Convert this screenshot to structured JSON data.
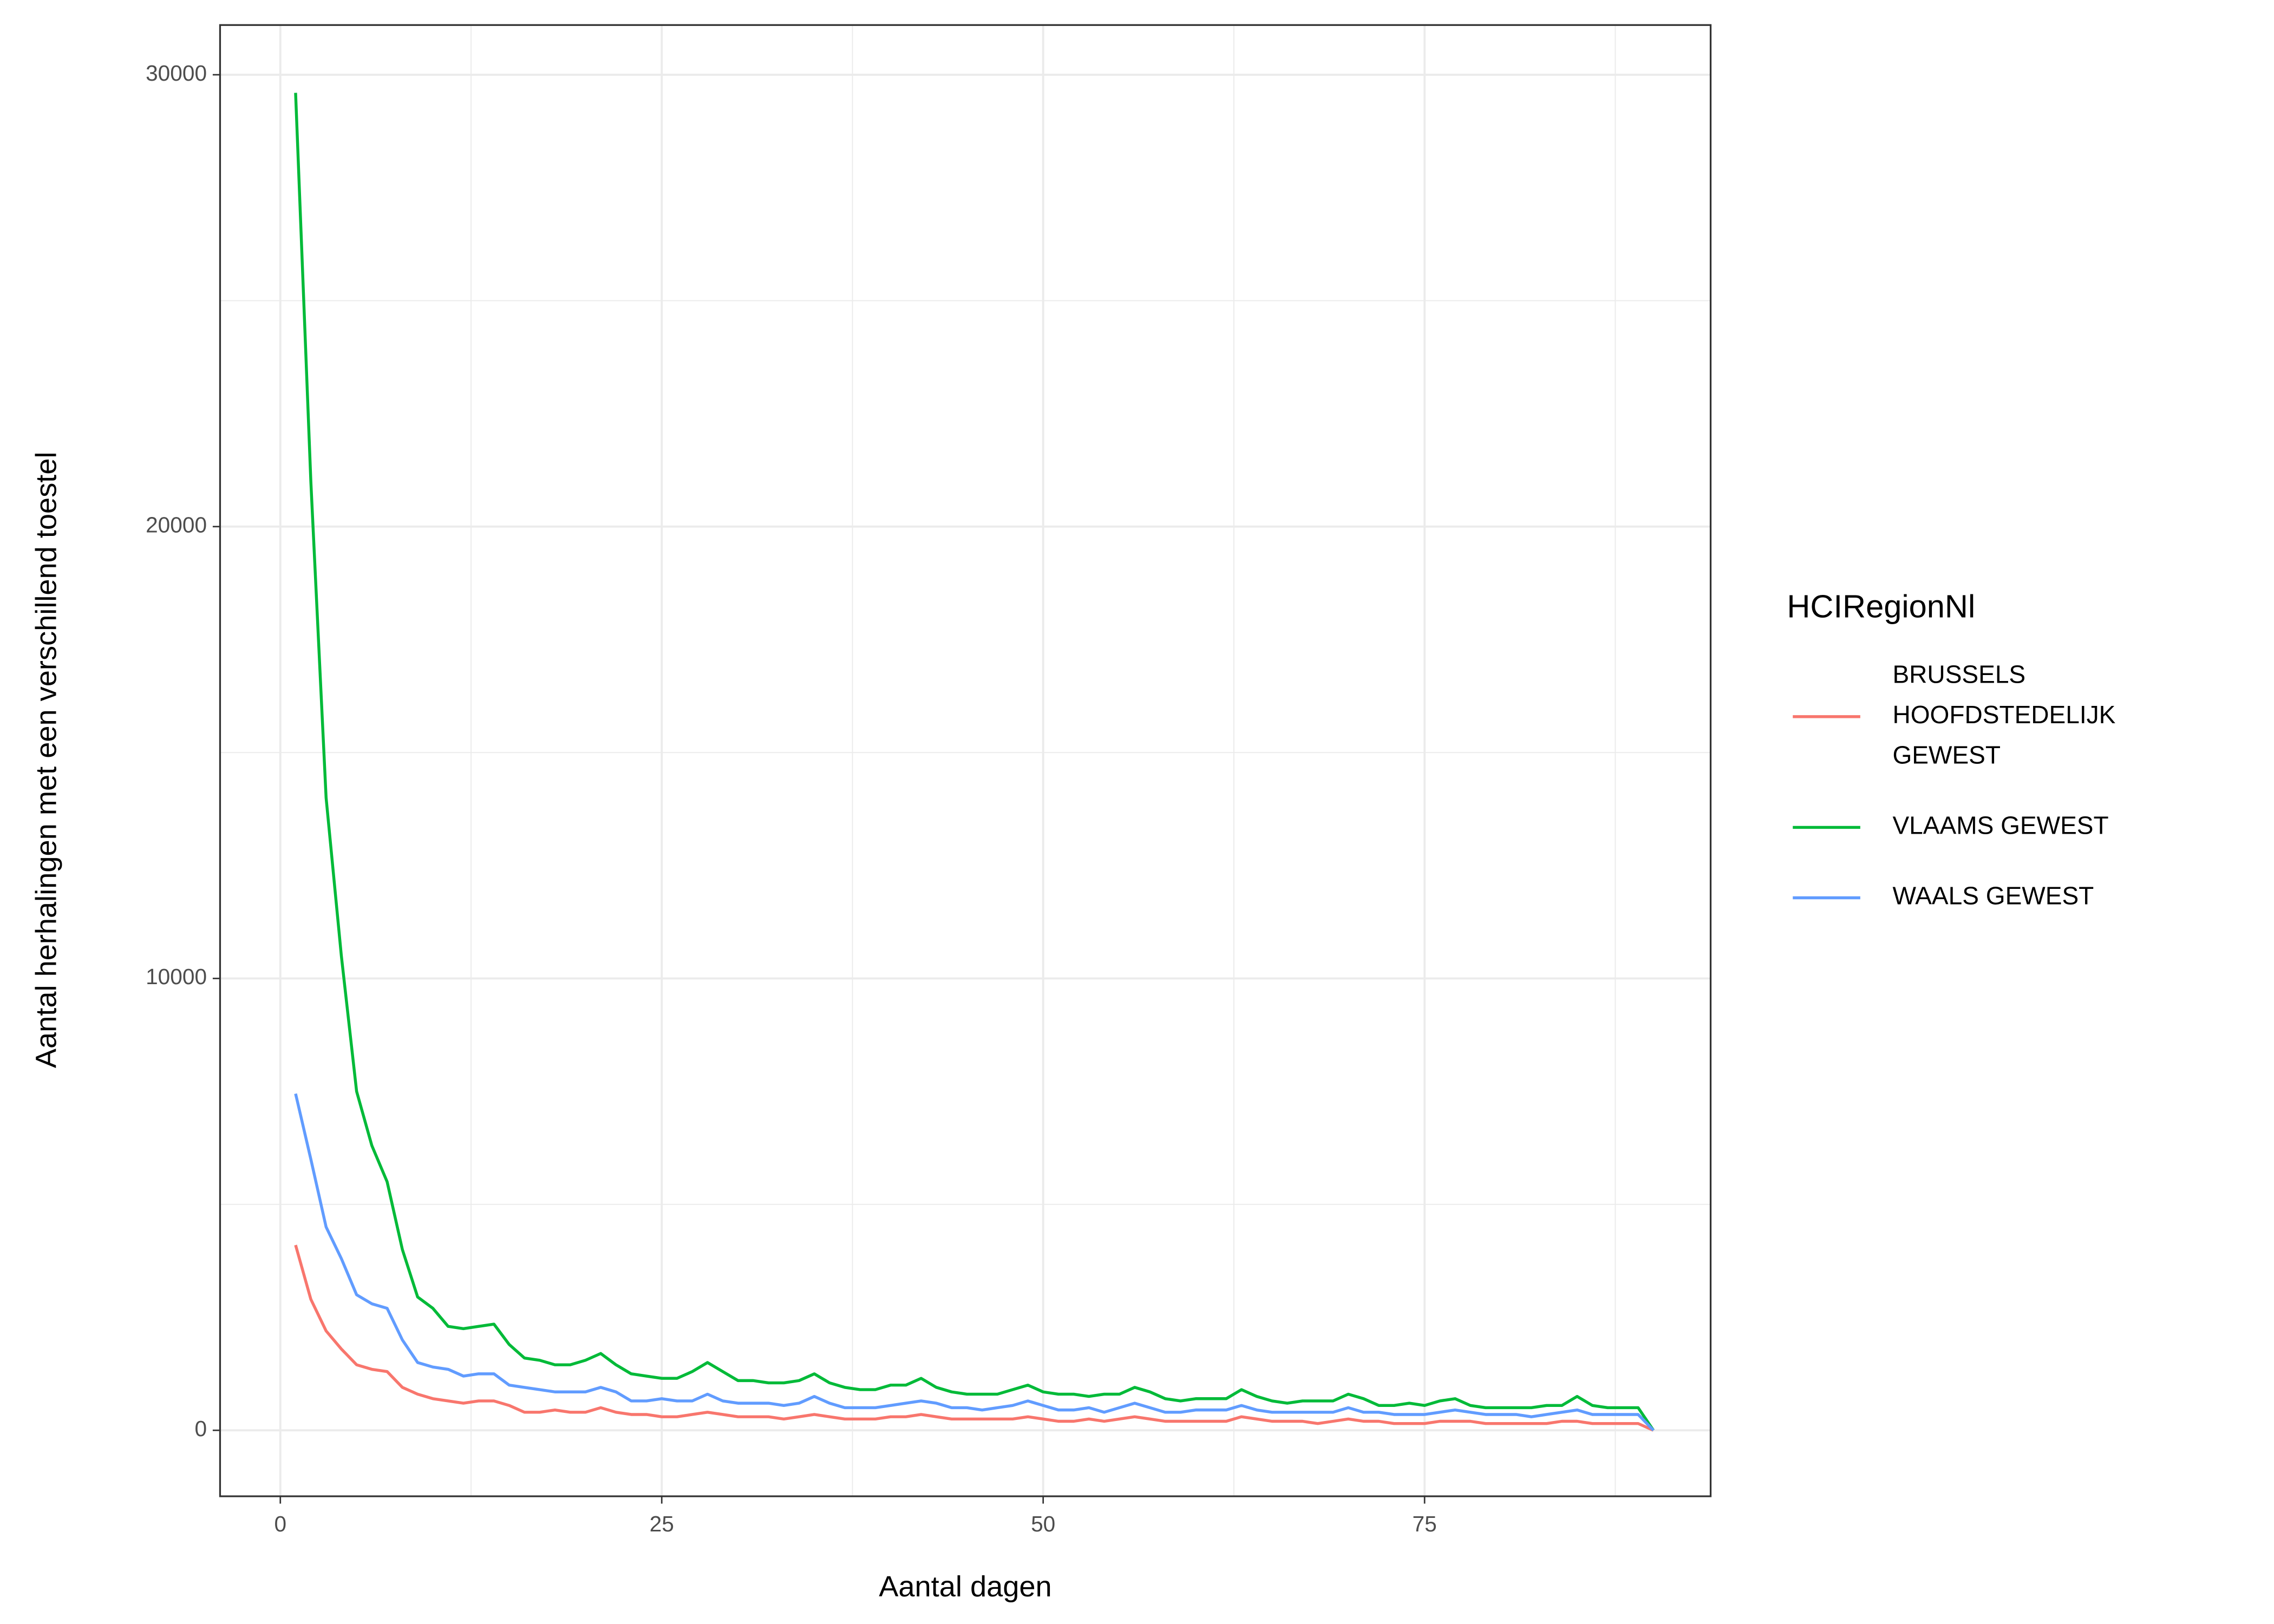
{
  "chart_data": {
    "type": "line",
    "x_label": "Aantal dagen",
    "y_label": "Aantal herhalingen met een verschillend toestel",
    "legend_title": "HCIRegionNl",
    "legend_position": "right",
    "grid": true,
    "xlim": [
      -3.95,
      93.75
    ],
    "ylim": [
      -1460,
      31100
    ],
    "xticks": [
      0,
      25,
      50,
      75
    ],
    "yticks": [
      0,
      10000,
      20000,
      30000
    ],
    "xminor": [
      12.5,
      37.5,
      62.5,
      87.5
    ],
    "yminor": [
      5000,
      15000,
      25000
    ],
    "x": [
      1,
      2,
      3,
      4,
      5,
      6,
      7,
      8,
      9,
      10,
      11,
      12,
      13,
      14,
      15,
      16,
      17,
      18,
      19,
      20,
      21,
      22,
      23,
      24,
      25,
      26,
      27,
      28,
      29,
      30,
      31,
      32,
      33,
      34,
      35,
      36,
      37,
      38,
      39,
      40,
      41,
      42,
      43,
      44,
      45,
      46,
      47,
      48,
      49,
      50,
      51,
      52,
      53,
      54,
      55,
      56,
      57,
      58,
      59,
      60,
      61,
      62,
      63,
      64,
      65,
      66,
      67,
      68,
      69,
      70,
      71,
      72,
      73,
      74,
      75,
      76,
      77,
      78,
      79,
      80,
      81,
      82,
      83,
      84,
      85,
      86,
      87,
      88,
      89,
      90
    ],
    "series": [
      {
        "name": "BRUSSELS HOOFDSTEDELIJK GEWEST",
        "color": "#F8766D",
        "values": [
          4100,
          2900,
          2200,
          1800,
          1450,
          1350,
          1300,
          950,
          800,
          700,
          650,
          600,
          650,
          650,
          550,
          400,
          400,
          450,
          400,
          400,
          500,
          400,
          350,
          350,
          300,
          300,
          350,
          400,
          350,
          300,
          300,
          300,
          250,
          300,
          350,
          300,
          250,
          250,
          250,
          300,
          300,
          350,
          300,
          250,
          250,
          250,
          250,
          250,
          300,
          250,
          200,
          200,
          250,
          200,
          250,
          300,
          250,
          200,
          200,
          200,
          200,
          200,
          300,
          250,
          200,
          200,
          200,
          150,
          200,
          250,
          200,
          200,
          150,
          150,
          150,
          200,
          200,
          200,
          150,
          150,
          150,
          150,
          150,
          200,
          200,
          150,
          150,
          150,
          150,
          0
        ]
      },
      {
        "name": "VLAAMS GEWEST",
        "color": "#00BA38",
        "values": [
          29600,
          21000,
          14000,
          10500,
          7500,
          6300,
          5500,
          4000,
          2950,
          2700,
          2300,
          2250,
          2300,
          2350,
          1900,
          1600,
          1550,
          1450,
          1450,
          1550,
          1700,
          1450,
          1250,
          1200,
          1150,
          1150,
          1300,
          1500,
          1300,
          1100,
          1100,
          1050,
          1050,
          1100,
          1250,
          1050,
          950,
          900,
          900,
          1000,
          1000,
          1150,
          950,
          850,
          800,
          800,
          800,
          900,
          1000,
          850,
          800,
          800,
          750,
          800,
          800,
          950,
          850,
          700,
          650,
          700,
          700,
          700,
          900,
          750,
          650,
          600,
          650,
          650,
          650,
          800,
          700,
          550,
          550,
          600,
          550,
          650,
          700,
          550,
          500,
          500,
          500,
          500,
          550,
          550,
          750,
          550,
          500,
          500,
          500,
          0
        ]
      },
      {
        "name": "WAALS GEWEST",
        "color": "#619CFF",
        "values": [
          7450,
          6000,
          4500,
          3800,
          3000,
          2800,
          2700,
          2000,
          1500,
          1400,
          1350,
          1200,
          1250,
          1250,
          1000,
          950,
          900,
          850,
          850,
          850,
          950,
          850,
          650,
          650,
          700,
          650,
          650,
          800,
          650,
          600,
          600,
          600,
          550,
          600,
          750,
          600,
          500,
          500,
          500,
          550,
          600,
          650,
          600,
          500,
          500,
          450,
          500,
          550,
          650,
          550,
          450,
          450,
          500,
          400,
          500,
          600,
          500,
          400,
          400,
          450,
          450,
          450,
          550,
          450,
          400,
          400,
          400,
          400,
          400,
          500,
          400,
          400,
          350,
          350,
          350,
          400,
          450,
          400,
          350,
          350,
          350,
          300,
          350,
          400,
          450,
          350,
          350,
          350,
          350,
          0
        ]
      }
    ]
  }
}
